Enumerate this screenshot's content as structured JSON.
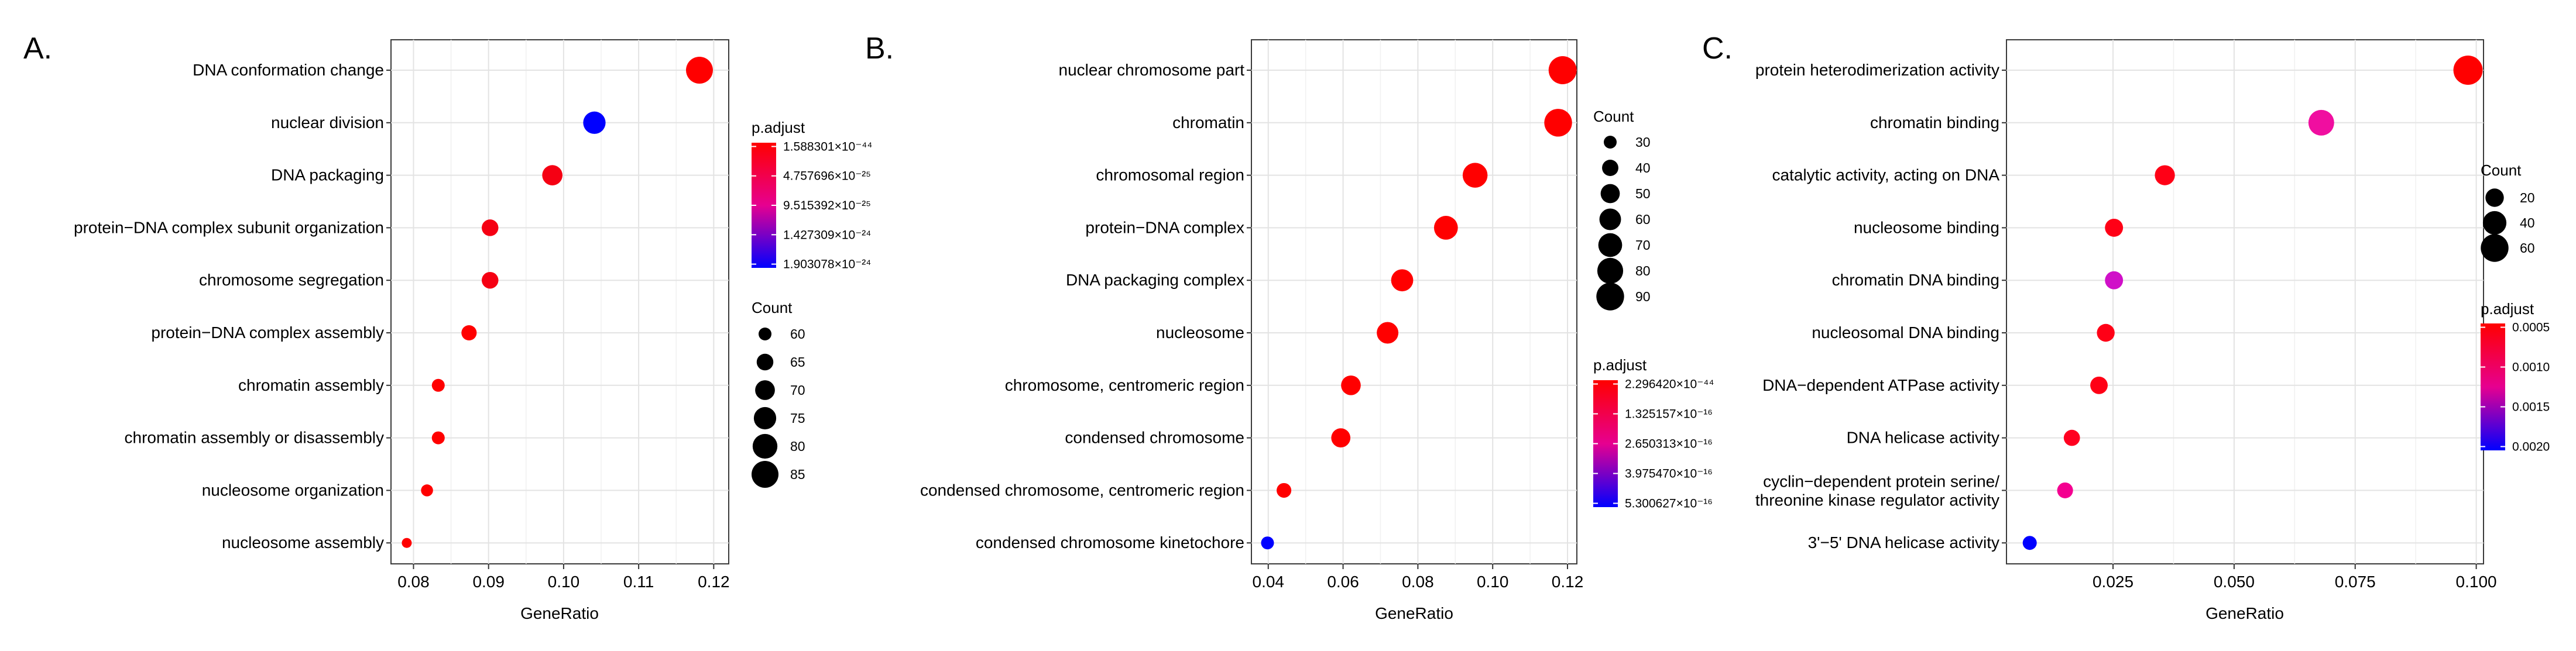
{
  "chart_data": [
    {
      "panel": "A.",
      "type": "scatter",
      "xlabel": "GeneRatio",
      "xlim": [
        0.077,
        0.122
      ],
      "xticks": [
        0.08,
        0.09,
        0.1,
        0.11,
        0.12
      ],
      "xtick_labels": [
        "0.08",
        "0.09",
        "0.10",
        "0.11",
        "0.12"
      ],
      "categories": [
        "DNA conformation change",
        "nuclear division",
        "DNA packaging",
        "protein−DNA complex subunit organization",
        "chromosome segregation",
        "protein−DNA complex assembly",
        "chromatin assembly",
        "chromatin assembly or disassembly",
        "nucleosome organization",
        "nucleosome assembly"
      ],
      "gene_ratio": [
        0.1181,
        0.1041,
        0.0985,
        0.0902,
        0.0902,
        0.0874,
        0.0833,
        0.0833,
        0.0818,
        0.0791
      ],
      "count": [
        85,
        75,
        71,
        65,
        65,
        63,
        60,
        60,
        59,
        57
      ],
      "p_adjust_color": [
        "#ff0000",
        "#0000ff",
        "#f50013",
        "#f50013",
        "#f50013",
        "#ff0000",
        "#ff0000",
        "#ff0000",
        "#ff0000",
        "#ff0000"
      ],
      "legends": {
        "color_title": "p.adjust",
        "color_ticks": [
          "1.588301×10⁻⁴⁴",
          "4.757696×10⁻²⁵",
          "9.515392×10⁻²⁵",
          "1.427309×10⁻²⁴",
          "1.903078×10⁻²⁴"
        ],
        "size_title": "Count",
        "size_values": [
          60,
          65,
          70,
          75,
          80,
          85
        ]
      }
    },
    {
      "panel": "B.",
      "type": "scatter",
      "xlabel": "GeneRatio",
      "xlim": [
        0.0355,
        0.1225
      ],
      "xticks": [
        0.04,
        0.06,
        0.08,
        0.1,
        0.12
      ],
      "xtick_labels": [
        "0.04",
        "0.06",
        "0.08",
        "0.10",
        "0.12"
      ],
      "categories": [
        "nuclear chromosome part",
        "chromatin",
        "chromosomal region",
        "protein−DNA complex",
        "DNA packaging complex",
        "nucleosome",
        "chromosome, centromeric region",
        "condensed chromosome",
        "condensed chromosome, centromeric region",
        "condensed chromosome kinetochore"
      ],
      "gene_ratio": [
        0.1187,
        0.1175,
        0.0953,
        0.0875,
        0.0758,
        0.0719,
        0.0621,
        0.0594,
        0.0442,
        0.0398
      ],
      "count": [
        92,
        90,
        75,
        70,
        62,
        60,
        52,
        50,
        35,
        30
      ],
      "p_adjust_color": [
        "#ff0000",
        "#ff0000",
        "#ff0000",
        "#ff0000",
        "#ff0000",
        "#ff0000",
        "#ff0000",
        "#ff0000",
        "#ff0000",
        "#0000ff"
      ],
      "legends": {
        "size_title": "Count",
        "size_values": [
          30,
          40,
          50,
          60,
          70,
          80,
          90
        ],
        "color_title": "p.adjust",
        "color_ticks": [
          "2.296420×10⁻⁴⁴",
          "1.325157×10⁻¹⁶",
          "2.650313×10⁻¹⁶",
          "3.975470×10⁻¹⁶",
          "5.300627×10⁻¹⁶"
        ]
      }
    },
    {
      "panel": "C.",
      "type": "scatter",
      "xlabel": "GeneRatio",
      "xlim": [
        0.003,
        0.1015
      ],
      "xticks": [
        0.025,
        0.05,
        0.075,
        0.1
      ],
      "xtick_labels": [
        "0.025",
        "0.050",
        "0.075",
        "0.100"
      ],
      "categories": [
        "protein heterodimerization activity",
        "chromatin binding",
        "catalytic activity, acting on DNA",
        "nucleosome binding",
        "chromatin DNA binding",
        "nucleosomal DNA binding",
        "DNA−dependent ATPase activity",
        "DNA helicase activity",
        "cyclin−dependent protein serine/\nthreonine kinase regulator activity",
        "3'−5' DNA helicase activity"
      ],
      "gene_ratio": [
        0.0983,
        0.068,
        0.0357,
        0.0252,
        0.0252,
        0.0235,
        0.0221,
        0.0165,
        0.0151,
        0.0078
      ],
      "count": [
        68,
        50,
        26,
        19,
        19,
        18,
        17,
        13,
        12,
        7
      ],
      "p_adjust_color": [
        "#ff0000",
        "#f00ea0",
        "#ff0016",
        "#ff0016",
        "#d010c8",
        "#ff0016",
        "#ff0016",
        "#ff0020",
        "#f40090",
        "#0000ff"
      ],
      "legends": {
        "size_title": "Count",
        "size_values": [
          20,
          40,
          60
        ],
        "color_title": "p.adjust",
        "color_ticks": [
          "0.0005",
          "0.0010",
          "0.0015",
          "0.0020"
        ]
      }
    }
  ]
}
